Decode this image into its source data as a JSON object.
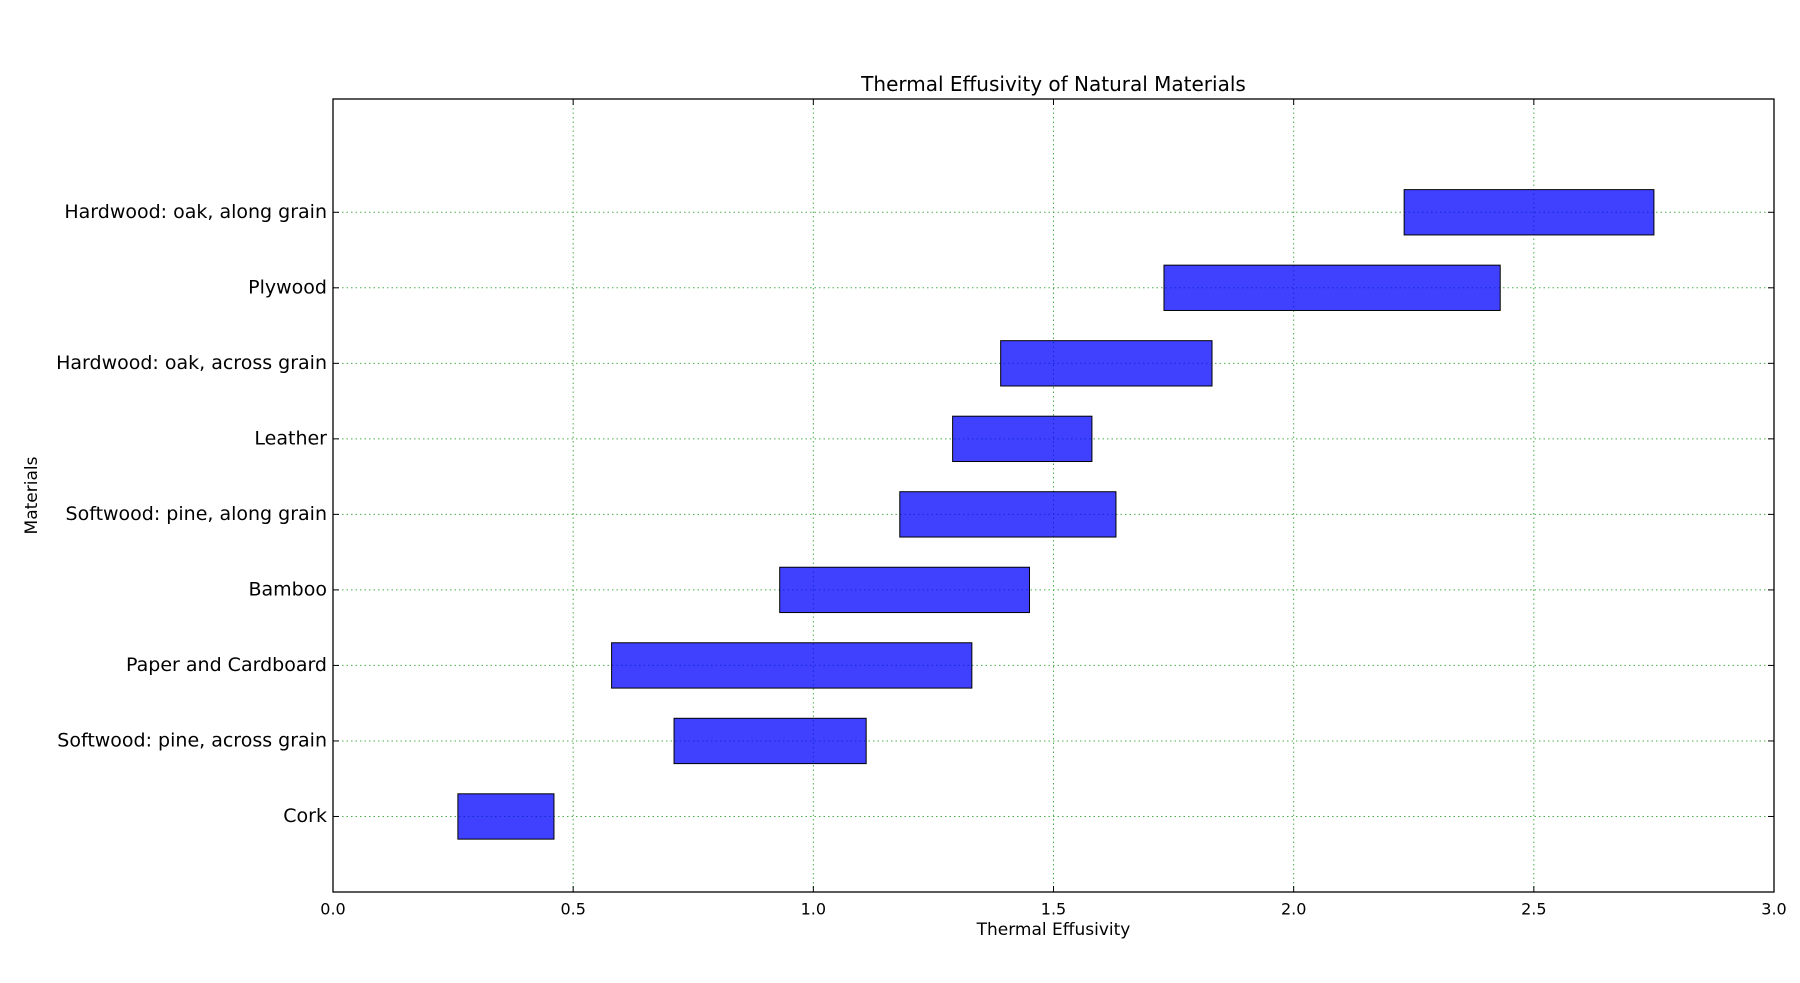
{
  "chart_data": {
    "type": "bar",
    "orientation": "horizontal-floating",
    "title": "Thermal Effusivity of Natural Materials",
    "xlabel": "Thermal Effusivity",
    "ylabel": "Materials",
    "xlim": [
      0,
      3.0
    ],
    "x_ticks": [
      "0.0",
      "0.5",
      "1.0",
      "1.5",
      "2.0",
      "2.5",
      "3.0"
    ],
    "grid": true,
    "bar_color": "#0000ff",
    "grid_color": "#2ca02c",
    "categories": [
      "Cork",
      "Softwood: pine, across grain",
      "Paper and Cardboard",
      "Bamboo",
      "Softwood: pine, along grain",
      "Leather",
      "Hardwood: oak, across grain",
      "Plywood",
      "Hardwood: oak, along grain"
    ],
    "ranges": [
      [
        0.26,
        0.46
      ],
      [
        0.71,
        1.11
      ],
      [
        0.58,
        1.33
      ],
      [
        0.93,
        1.45
      ],
      [
        1.18,
        1.63
      ],
      [
        1.29,
        1.58
      ],
      [
        1.39,
        1.83
      ],
      [
        1.73,
        2.43
      ],
      [
        2.23,
        2.75
      ]
    ]
  }
}
